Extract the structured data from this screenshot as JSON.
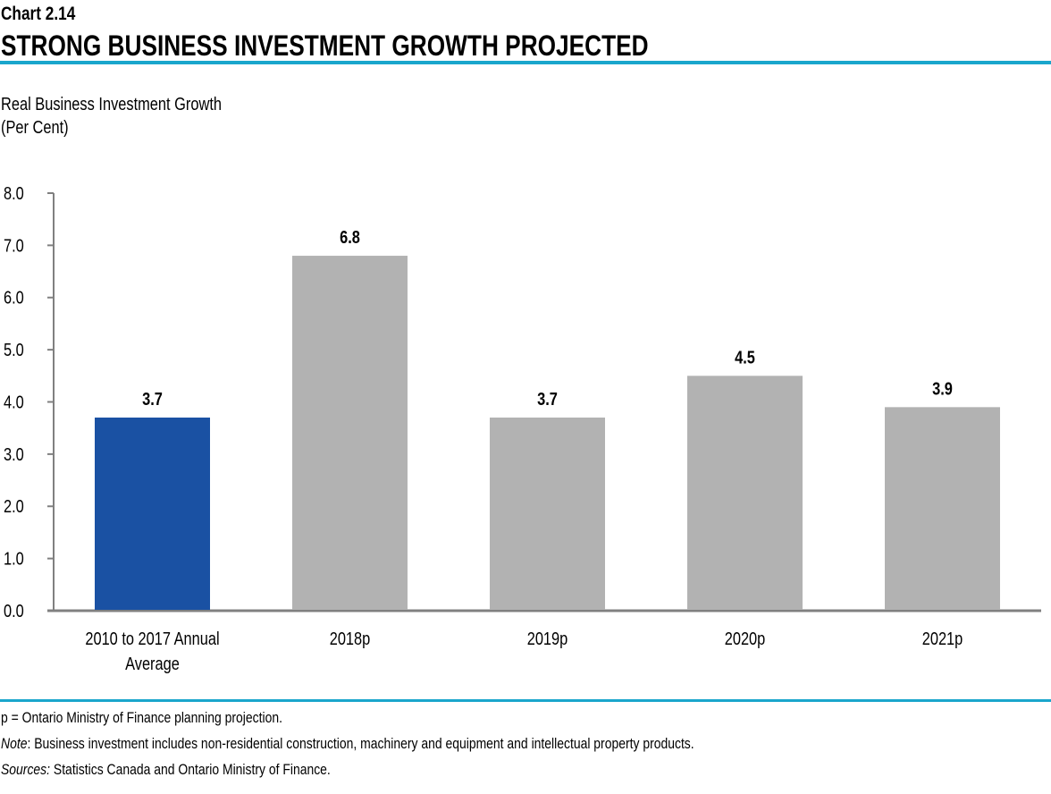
{
  "header": {
    "chart_number": "Chart 2.14",
    "title": "STRONG BUSINESS INVESTMENT GROWTH PROJECTED"
  },
  "colors": {
    "accent_rule": "#1aa6cc",
    "highlight_bar": "#1a51a3",
    "bar": "#b2b2b2",
    "axis": "#808080"
  },
  "chart_data": {
    "type": "bar",
    "title": "STRONG BUSINESS INVESTMENT GROWTH PROJECTED",
    "ylabel": [
      "Real Business Investment  Growth",
      "(Per Cent)"
    ],
    "xlabel": "",
    "categories": [
      "2010 to 2017 Annual Average",
      "2018p",
      "2019p",
      "2020p",
      "2021p"
    ],
    "category_lines": [
      [
        "2010 to 2017 Annual",
        "Average"
      ],
      [
        "2018p"
      ],
      [
        "2019p"
      ],
      [
        "2020p"
      ],
      [
        "2021p"
      ]
    ],
    "values": [
      3.7,
      6.8,
      3.7,
      4.5,
      3.9
    ],
    "data_labels": [
      "3.7",
      "6.8",
      "3.7",
      "4.5",
      "3.9"
    ],
    "highlight_index": 0,
    "ylim": [
      0,
      8
    ],
    "yticks": [
      "0.0",
      "1.0",
      "2.0",
      "3.0",
      "4.0",
      "5.0",
      "6.0",
      "7.0",
      "8.0"
    ],
    "grid": false,
    "legend": "none"
  },
  "notes": {
    "p_line": "p = Ontario Ministry of Finance planning projection.",
    "note_label": "Note",
    "note_text": ": Business investment includes non-residential construction, machinery and equipment and intellectual property products.",
    "sources_label": "Sources:",
    "sources_text": " Statistics Canada and Ontario Ministry of Finance."
  }
}
